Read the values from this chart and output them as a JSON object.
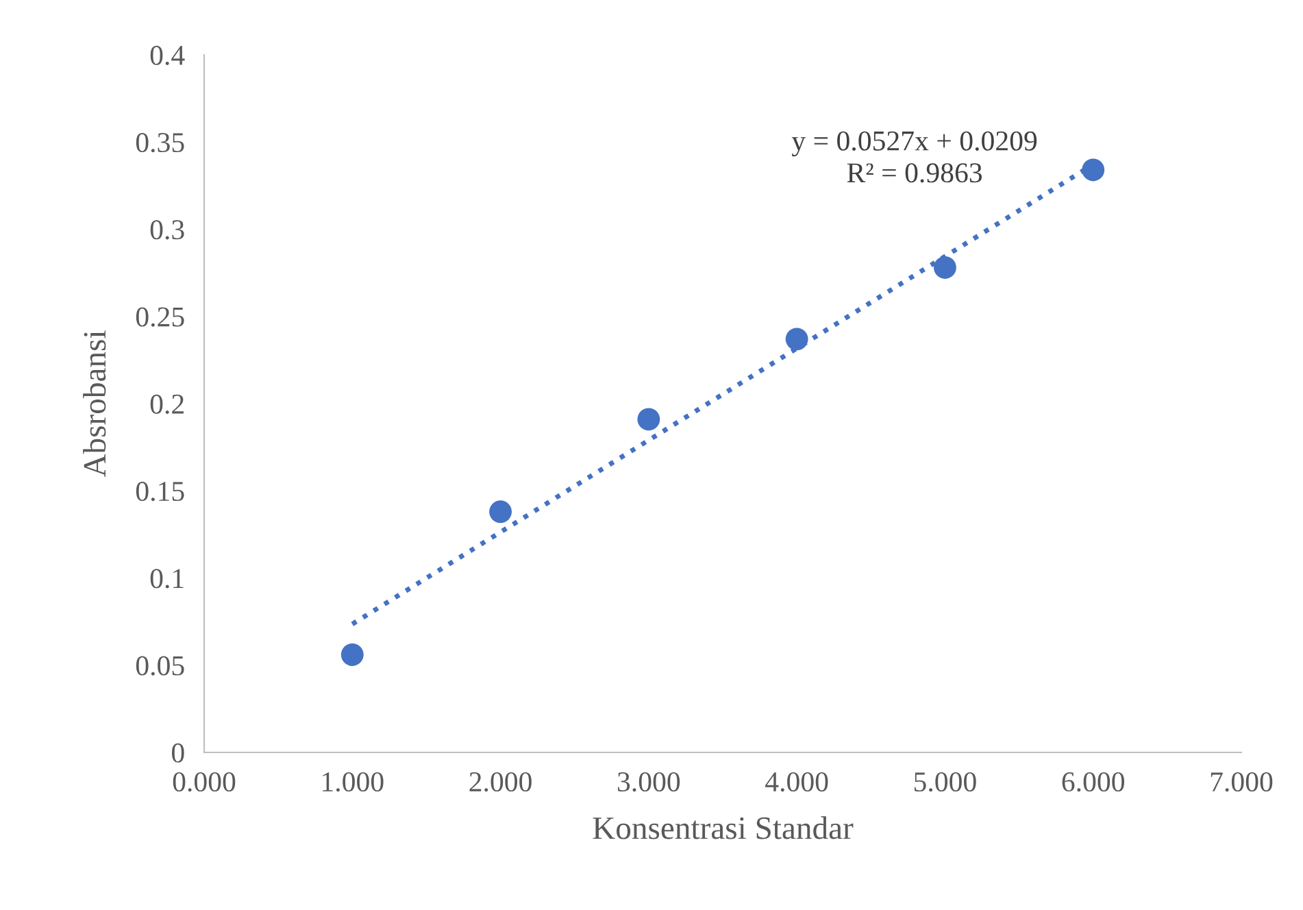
{
  "chart_data": {
    "type": "scatter",
    "xlabel": "Konsentrasi Standar",
    "ylabel": "Absrobansi",
    "annotations": [
      "y = 0.0527x + 0.0209",
      "R² = 0.9863"
    ],
    "series": [
      {
        "color": "#4472c4",
        "marker": "circle",
        "x": [
          1,
          2,
          3,
          4,
          5,
          6
        ],
        "values": [
          0.056,
          0.138,
          0.191,
          0.237,
          0.278,
          0.334
        ]
      },
      {
        "type": "line",
        "color": "#4472c4",
        "line_style": "dotted",
        "marker": "none",
        "x": [
          1,
          6
        ],
        "values": [
          0.0736,
          0.3371
        ]
      }
    ],
    "xlim": [
      0,
      7
    ],
    "xticks": [
      {
        "value": 0,
        "label": "0.000"
      },
      {
        "value": 1,
        "label": "1.000"
      },
      {
        "value": 2,
        "label": "2.000"
      },
      {
        "value": 3,
        "label": "3.000"
      },
      {
        "value": 4,
        "label": "4.000"
      },
      {
        "value": 5,
        "label": "5.000"
      },
      {
        "value": 6,
        "label": "6.000"
      },
      {
        "value": 7,
        "label": "7.000"
      }
    ],
    "ylim": [
      0,
      0.4
    ],
    "yticks": [
      0,
      0.05,
      0.1,
      0.15,
      0.2,
      0.25,
      0.3,
      0.35,
      0.4
    ],
    "grid": false,
    "legend": false
  }
}
